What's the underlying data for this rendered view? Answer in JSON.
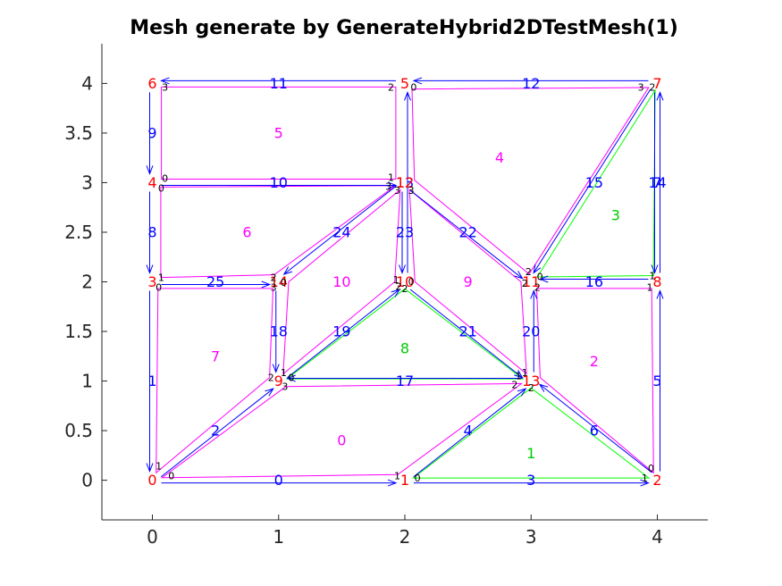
{
  "title": "Mesh generate by GenerateHybrid2DTestMesh(1)",
  "colors": {
    "node": "#ff0000",
    "edge": "#0000ff",
    "cell": "#ff00ff",
    "cell_tri": "#00cc00",
    "local": "#000000",
    "outline": "#ff00ff",
    "outline_tri": "#00ff00",
    "axis": "#262626"
  },
  "axes": {
    "xlim": [
      -0.4,
      4.4
    ],
    "ylim": [
      -0.4,
      4.4
    ],
    "xticks": [
      "0",
      "1",
      "2",
      "3",
      "4"
    ],
    "yticks": [
      "0",
      "0.5",
      "1",
      "1.5",
      "2",
      "2.5",
      "3",
      "3.5",
      "4"
    ]
  },
  "mesh": {
    "nodes": [
      [
        0,
        0
      ],
      [
        2,
        0
      ],
      [
        4,
        0
      ],
      [
        0,
        2
      ],
      [
        0,
        3
      ],
      [
        2,
        4
      ],
      [
        0,
        4
      ],
      [
        4,
        4
      ],
      [
        4,
        2
      ],
      [
        1,
        1
      ],
      [
        2,
        2
      ],
      [
        3,
        2
      ],
      [
        2,
        3
      ],
      [
        3,
        1
      ],
      [
        1,
        2
      ]
    ],
    "edges": [
      [
        0,
        1
      ],
      [
        3,
        0
      ],
      [
        0,
        9
      ],
      [
        1,
        2
      ],
      [
        1,
        13
      ],
      [
        2,
        8
      ],
      [
        2,
        13
      ],
      [
        8,
        7
      ],
      [
        4,
        3
      ],
      [
        6,
        4
      ],
      [
        4,
        12
      ],
      [
        5,
        6
      ],
      [
        7,
        5
      ],
      [
        10,
        5
      ],
      [
        7,
        8
      ],
      [
        7,
        11
      ],
      [
        8,
        11
      ],
      [
        13,
        9
      ],
      [
        14,
        9
      ],
      [
        9,
        10
      ],
      [
        13,
        11
      ],
      [
        10,
        13
      ],
      [
        12,
        11
      ],
      [
        12,
        10
      ],
      [
        12,
        14
      ],
      [
        3,
        14
      ]
    ],
    "cells": [
      {
        "id": "0",
        "nodes": [
          0,
          1,
          13,
          9
        ],
        "center": [
          1.5,
          0.4
        ],
        "tri": false
      },
      {
        "id": "1",
        "nodes": [
          1,
          2,
          13
        ],
        "center": [
          3.0,
          0.27
        ],
        "tri": true
      },
      {
        "id": "2",
        "nodes": [
          2,
          8,
          11,
          13
        ],
        "center": [
          3.5,
          1.2
        ],
        "tri": false
      },
      {
        "id": "3",
        "nodes": [
          8,
          7,
          11
        ],
        "center": [
          3.67,
          2.67
        ],
        "tri": true
      },
      {
        "id": "4",
        "nodes": [
          11,
          7,
          5,
          12
        ],
        "center": [
          2.75,
          3.25
        ],
        "tri": false
      },
      {
        "id": "5",
        "nodes": [
          4,
          12,
          5,
          6
        ],
        "center": [
          1.0,
          3.5
        ],
        "tri": false
      },
      {
        "id": "6",
        "nodes": [
          3,
          14,
          12,
          4
        ],
        "center": [
          0.75,
          2.5
        ],
        "tri": false
      },
      {
        "id": "7",
        "nodes": [
          0,
          9,
          14,
          3
        ],
        "center": [
          0.5,
          1.25
        ],
        "tri": false
      },
      {
        "id": "8",
        "nodes": [
          9,
          13,
          10
        ],
        "center": [
          2.0,
          1.33
        ],
        "tri": true
      },
      {
        "id": "9",
        "nodes": [
          10,
          13,
          11,
          12
        ],
        "center": [
          2.5,
          2.0
        ],
        "tri": false
      },
      {
        "id": "10",
        "nodes": [
          9,
          10,
          12,
          14
        ],
        "center": [
          1.5,
          2.0
        ],
        "tri": false
      }
    ],
    "local_labels": [
      {
        "text": "0",
        "at": [
          0.15,
          0.04
        ]
      },
      {
        "text": "1",
        "at": [
          0.05,
          0.14
        ]
      },
      {
        "text": "1",
        "at": [
          1.94,
          0.04
        ]
      },
      {
        "text": "0",
        "at": [
          2.1,
          0.02
        ]
      },
      {
        "text": "1",
        "at": [
          3.9,
          0.02
        ]
      },
      {
        "text": "0",
        "at": [
          3.95,
          0.12
        ]
      },
      {
        "text": "1",
        "at": [
          3.96,
          2.06
        ]
      },
      {
        "text": "1",
        "at": [
          3.94,
          1.94
        ]
      },
      {
        "text": "3",
        "at": [
          0.1,
          3.96
        ]
      },
      {
        "text": "2",
        "at": [
          1.89,
          3.96
        ]
      },
      {
        "text": "0",
        "at": [
          2.07,
          3.96
        ]
      },
      {
        "text": "3",
        "at": [
          3.87,
          3.96
        ]
      },
      {
        "text": "2",
        "at": [
          3.96,
          3.96
        ]
      },
      {
        "text": "0",
        "at": [
          0.1,
          3.04
        ]
      },
      {
        "text": "0",
        "at": [
          0.07,
          2.94
        ]
      },
      {
        "text": "1",
        "at": [
          1.89,
          3.05
        ]
      },
      {
        "text": "3",
        "at": [
          1.87,
          2.96
        ]
      },
      {
        "text": "3",
        "at": [
          1.94,
          2.92
        ]
      },
      {
        "text": "3",
        "at": [
          2.05,
          2.92
        ]
      },
      {
        "text": "1",
        "at": [
          0.07,
          2.04
        ]
      },
      {
        "text": "0",
        "at": [
          0.05,
          1.94
        ]
      },
      {
        "text": "2",
        "at": [
          0.96,
          2.04
        ]
      },
      {
        "text": "3",
        "at": [
          0.96,
          1.94
        ]
      },
      {
        "text": "0",
        "at": [
          1.04,
          1.99
        ]
      },
      {
        "text": "1",
        "at": [
          1.93,
          2.02
        ]
      },
      {
        "text": "0",
        "at": [
          2.05,
          2.0
        ]
      },
      {
        "text": "2",
        "at": [
          1.95,
          1.95
        ]
      },
      {
        "text": "2",
        "at": [
          2.0,
          1.93
        ]
      },
      {
        "text": "2",
        "at": [
          2.98,
          2.1
        ]
      },
      {
        "text": "0",
        "at": [
          3.07,
          2.05
        ]
      },
      {
        "text": "2",
        "at": [
          2.95,
          1.98
        ]
      },
      {
        "text": "2",
        "at": [
          3.05,
          1.94
        ]
      },
      {
        "text": "2",
        "at": [
          0.94,
          1.03
        ]
      },
      {
        "text": "1",
        "at": [
          1.04,
          1.08
        ]
      },
      {
        "text": "0",
        "at": [
          1.1,
          1.03
        ]
      },
      {
        "text": "3",
        "at": [
          1.05,
          0.94
        ]
      },
      {
        "text": "1",
        "at": [
          2.9,
          1.05
        ]
      },
      {
        "text": "1",
        "at": [
          2.95,
          1.08
        ]
      },
      {
        "text": "2",
        "at": [
          2.87,
          0.96
        ]
      },
      {
        "text": "2",
        "at": [
          3.0,
          0.93
        ]
      }
    ]
  }
}
